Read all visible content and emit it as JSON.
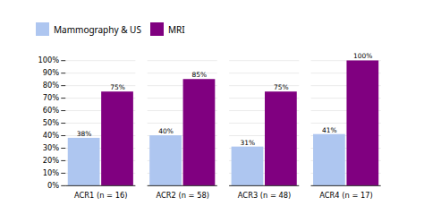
{
  "chart_data": {
    "type": "bar",
    "categories": [
      "ACR1 (n = 16)",
      "ACR2 (n = 58)",
      "ACR3 (n = 48)",
      "ACR4 (n = 17)"
    ],
    "series": [
      {
        "name": "Mammography & US",
        "color": "#aec6f0",
        "values": [
          38,
          40,
          31,
          41
        ],
        "value_labels": [
          "38%",
          "40%",
          "31%",
          "41%"
        ]
      },
      {
        "name": "MRI",
        "color": "#800080",
        "values": [
          75,
          85,
          75,
          100
        ],
        "value_labels": [
          "75%",
          "85%",
          "75%",
          "100%"
        ]
      }
    ],
    "ylim": [
      0,
      100
    ],
    "yticks": [
      {
        "value": 0,
        "label": "0%"
      },
      {
        "value": 10,
        "label": "10%"
      },
      {
        "value": 20,
        "label": "20%"
      },
      {
        "value": 30,
        "label": "30%"
      },
      {
        "value": 40,
        "label": "40%"
      },
      {
        "value": 50,
        "label": "50%"
      },
      {
        "value": 60,
        "label": "60%"
      },
      {
        "value": 70,
        "label": "70%"
      },
      {
        "value": 80,
        "label": "80%"
      },
      {
        "value": 90,
        "label": "90%"
      },
      {
        "value": 100,
        "label": "100%"
      }
    ],
    "grid": true,
    "legend": "upper left",
    "data_labels": true
  }
}
